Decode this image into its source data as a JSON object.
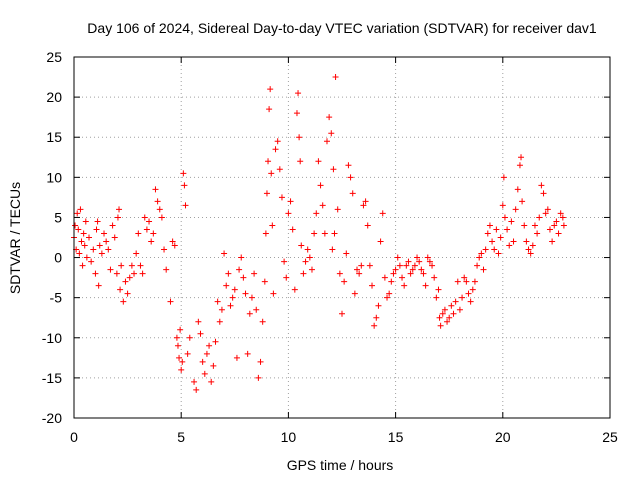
{
  "chart_data": {
    "type": "scatter",
    "title": "Day 106 of 2024, Sidereal Day-to-day VTEC variation (SDTVAR) for receiver dav1",
    "xlabel": "GPS time / hours",
    "ylabel": "SDTVAR / TECUs",
    "xlim": [
      0,
      25
    ],
    "ylim": [
      -20,
      25
    ],
    "xticks": [
      0,
      5,
      10,
      15,
      20,
      25
    ],
    "yticks": [
      -20,
      -15,
      -10,
      -5,
      0,
      5,
      10,
      15,
      20,
      25
    ],
    "xtick_labels": [
      "0",
      "5",
      "10",
      "15",
      "20",
      "25"
    ],
    "ytick_labels": [
      "-20",
      "-15",
      "-10",
      "-5",
      "0",
      "5",
      "10",
      "15",
      "20",
      "25"
    ],
    "grid": true,
    "marker": "+",
    "marker_color": "#ff0000",
    "series": [
      {
        "name": "SDTVAR",
        "points": [
          [
            0.0,
            2.5
          ],
          [
            0.05,
            4.0
          ],
          [
            0.1,
            1.0
          ],
          [
            0.15,
            5.5
          ],
          [
            0.2,
            3.5
          ],
          [
            0.25,
            0.5
          ],
          [
            0.3,
            6.0
          ],
          [
            0.35,
            2.0
          ],
          [
            0.4,
            -1.0
          ],
          [
            0.45,
            3.0
          ],
          [
            0.5,
            1.5
          ],
          [
            0.55,
            4.5
          ],
          [
            0.6,
            0.0
          ],
          [
            0.7,
            2.5
          ],
          [
            0.8,
            -0.5
          ],
          [
            0.9,
            1.0
          ],
          [
            1.0,
            -2.0
          ],
          [
            1.05,
            3.5
          ],
          [
            1.1,
            4.5
          ],
          [
            1.15,
            -3.5
          ],
          [
            1.2,
            1.5
          ],
          [
            1.3,
            0.5
          ],
          [
            1.4,
            3.0
          ],
          [
            1.5,
            2.0
          ],
          [
            1.6,
            1.0
          ],
          [
            1.7,
            -1.5
          ],
          [
            1.8,
            4.0
          ],
          [
            1.9,
            2.5
          ],
          [
            2.0,
            -2.0
          ],
          [
            2.05,
            5.0
          ],
          [
            2.1,
            6.0
          ],
          [
            2.15,
            -4.0
          ],
          [
            2.2,
            -1.0
          ],
          [
            2.3,
            -5.5
          ],
          [
            2.4,
            -3.0
          ],
          [
            2.5,
            -4.5
          ],
          [
            2.6,
            -2.5
          ],
          [
            2.7,
            -1.0
          ],
          [
            2.8,
            -2.0
          ],
          [
            2.9,
            0.5
          ],
          [
            3.0,
            3.0
          ],
          [
            3.1,
            -1.0
          ],
          [
            3.2,
            -2.0
          ],
          [
            3.3,
            5.0
          ],
          [
            3.4,
            3.5
          ],
          [
            3.5,
            4.5
          ],
          [
            3.6,
            2.0
          ],
          [
            3.7,
            3.0
          ],
          [
            3.8,
            8.5
          ],
          [
            3.9,
            7.0
          ],
          [
            4.0,
            6.0
          ],
          [
            4.1,
            5.0
          ],
          [
            4.2,
            1.0
          ],
          [
            4.3,
            -1.5
          ],
          [
            4.5,
            -5.5
          ],
          [
            4.6,
            2.0
          ],
          [
            4.7,
            1.5
          ],
          [
            4.8,
            -10.0
          ],
          [
            4.85,
            -11.0
          ],
          [
            4.9,
            -12.5
          ],
          [
            4.95,
            -9.0
          ],
          [
            5.0,
            -14.0
          ],
          [
            5.05,
            -13.0
          ],
          [
            5.1,
            10.5
          ],
          [
            5.15,
            9.0
          ],
          [
            5.2,
            6.5
          ],
          [
            5.3,
            -12.0
          ],
          [
            5.4,
            -10.0
          ],
          [
            5.6,
            -15.5
          ],
          [
            5.7,
            -16.5
          ],
          [
            5.8,
            -8.0
          ],
          [
            5.9,
            -9.5
          ],
          [
            6.0,
            -13.0
          ],
          [
            6.1,
            -14.5
          ],
          [
            6.2,
            -12.0
          ],
          [
            6.3,
            -11.0
          ],
          [
            6.4,
            -15.5
          ],
          [
            6.5,
            -13.5
          ],
          [
            6.6,
            -10.5
          ],
          [
            6.7,
            -5.5
          ],
          [
            6.8,
            -8.0
          ],
          [
            6.9,
            -6.5
          ],
          [
            7.0,
            0.5
          ],
          [
            7.1,
            -3.5
          ],
          [
            7.2,
            -2.0
          ],
          [
            7.3,
            -6.0
          ],
          [
            7.4,
            -5.0
          ],
          [
            7.5,
            -4.0
          ],
          [
            7.6,
            -12.5
          ],
          [
            7.7,
            -1.5
          ],
          [
            7.8,
            0.0
          ],
          [
            7.9,
            -2.5
          ],
          [
            8.0,
            -4.5
          ],
          [
            8.1,
            -12.0
          ],
          [
            8.2,
            -7.0
          ],
          [
            8.3,
            -5.0
          ],
          [
            8.4,
            -2.0
          ],
          [
            8.5,
            -6.5
          ],
          [
            8.6,
            -15.0
          ],
          [
            8.7,
            -13.0
          ],
          [
            8.8,
            -8.0
          ],
          [
            8.9,
            -3.0
          ],
          [
            8.95,
            3.0
          ],
          [
            9.0,
            8.0
          ],
          [
            9.05,
            12.0
          ],
          [
            9.1,
            18.5
          ],
          [
            9.15,
            21.0
          ],
          [
            9.2,
            10.5
          ],
          [
            9.25,
            4.0
          ],
          [
            9.3,
            -4.5
          ],
          [
            9.4,
            13.5
          ],
          [
            9.5,
            14.5
          ],
          [
            9.6,
            11.0
          ],
          [
            9.7,
            7.5
          ],
          [
            9.8,
            -0.5
          ],
          [
            9.9,
            -2.5
          ],
          [
            10.0,
            5.5
          ],
          [
            10.1,
            7.0
          ],
          [
            10.2,
            3.5
          ],
          [
            10.3,
            -4.0
          ],
          [
            10.4,
            18.0
          ],
          [
            10.45,
            20.5
          ],
          [
            10.5,
            15.0
          ],
          [
            10.55,
            12.0
          ],
          [
            10.6,
            1.5
          ],
          [
            10.7,
            -2.0
          ],
          [
            10.8,
            -0.5
          ],
          [
            10.9,
            1.0
          ],
          [
            11.0,
            0.0
          ],
          [
            11.1,
            -1.5
          ],
          [
            11.2,
            3.0
          ],
          [
            11.3,
            5.5
          ],
          [
            11.4,
            12.0
          ],
          [
            11.5,
            9.0
          ],
          [
            11.6,
            6.5
          ],
          [
            11.7,
            3.0
          ],
          [
            11.8,
            14.5
          ],
          [
            11.9,
            17.5
          ],
          [
            12.0,
            15.5
          ],
          [
            12.05,
            1.0
          ],
          [
            12.1,
            11.0
          ],
          [
            12.15,
            3.0
          ],
          [
            12.2,
            22.5
          ],
          [
            12.3,
            6.0
          ],
          [
            12.4,
            -2.0
          ],
          [
            12.5,
            -7.0
          ],
          [
            12.6,
            -3.0
          ],
          [
            12.7,
            0.5
          ],
          [
            12.8,
            11.5
          ],
          [
            12.9,
            10.0
          ],
          [
            13.0,
            8.0
          ],
          [
            13.1,
            -4.5
          ],
          [
            13.2,
            -1.5
          ],
          [
            13.3,
            -2.0
          ],
          [
            13.4,
            -1.0
          ],
          [
            13.5,
            6.5
          ],
          [
            13.6,
            7.0
          ],
          [
            13.7,
            4.0
          ],
          [
            13.8,
            -1.0
          ],
          [
            13.9,
            -3.5
          ],
          [
            14.0,
            -8.5
          ],
          [
            14.1,
            -7.5
          ],
          [
            14.2,
            -6.0
          ],
          [
            14.3,
            2.0
          ],
          [
            14.4,
            5.5
          ],
          [
            14.5,
            -2.5
          ],
          [
            14.6,
            -5.0
          ],
          [
            14.7,
            -4.5
          ],
          [
            14.8,
            -3.0
          ],
          [
            14.9,
            -2.0
          ],
          [
            15.0,
            -1.5
          ],
          [
            15.1,
            0.0
          ],
          [
            15.2,
            -1.0
          ],
          [
            15.3,
            -2.5
          ],
          [
            15.4,
            -3.5
          ],
          [
            15.5,
            -1.0
          ],
          [
            15.6,
            -0.5
          ],
          [
            15.7,
            -2.0
          ],
          [
            15.8,
            -1.5
          ],
          [
            15.9,
            -1.0
          ],
          [
            16.0,
            0.0
          ],
          [
            16.1,
            -0.5
          ],
          [
            16.2,
            -1.5
          ],
          [
            16.3,
            -2.0
          ],
          [
            16.4,
            -3.5
          ],
          [
            16.5,
            0.0
          ],
          [
            16.6,
            -0.5
          ],
          [
            16.7,
            -1.0
          ],
          [
            16.8,
            -2.5
          ],
          [
            16.9,
            -5.0
          ],
          [
            17.0,
            -4.0
          ],
          [
            17.05,
            -7.5
          ],
          [
            17.1,
            -8.5
          ],
          [
            17.2,
            -7.0
          ],
          [
            17.3,
            -6.5
          ],
          [
            17.4,
            -8.0
          ],
          [
            17.5,
            -7.5
          ],
          [
            17.6,
            -6.0
          ],
          [
            17.7,
            -7.0
          ],
          [
            17.8,
            -5.5
          ],
          [
            17.9,
            -3.0
          ],
          [
            18.0,
            -6.5
          ],
          [
            18.1,
            -5.0
          ],
          [
            18.2,
            -2.5
          ],
          [
            18.3,
            -3.0
          ],
          [
            18.4,
            -4.5
          ],
          [
            18.5,
            -5.5
          ],
          [
            18.6,
            -4.0
          ],
          [
            18.7,
            -3.0
          ],
          [
            18.8,
            -1.0
          ],
          [
            18.9,
            0.0
          ],
          [
            19.0,
            0.5
          ],
          [
            19.1,
            -1.5
          ],
          [
            19.2,
            1.0
          ],
          [
            19.3,
            3.0
          ],
          [
            19.4,
            4.0
          ],
          [
            19.5,
            2.0
          ],
          [
            19.6,
            1.0
          ],
          [
            19.7,
            3.5
          ],
          [
            19.8,
            0.5
          ],
          [
            19.9,
            2.5
          ],
          [
            20.0,
            6.5
          ],
          [
            20.05,
            10.0
          ],
          [
            20.1,
            5.0
          ],
          [
            20.2,
            3.5
          ],
          [
            20.3,
            1.5
          ],
          [
            20.4,
            4.5
          ],
          [
            20.5,
            2.0
          ],
          [
            20.6,
            6.0
          ],
          [
            20.7,
            8.5
          ],
          [
            20.8,
            11.5
          ],
          [
            20.85,
            12.5
          ],
          [
            20.9,
            7.0
          ],
          [
            21.0,
            4.0
          ],
          [
            21.1,
            2.0
          ],
          [
            21.2,
            1.0
          ],
          [
            21.3,
            0.5
          ],
          [
            21.4,
            1.5
          ],
          [
            21.5,
            4.0
          ],
          [
            21.6,
            3.0
          ],
          [
            21.7,
            5.0
          ],
          [
            21.8,
            9.0
          ],
          [
            21.9,
            8.0
          ],
          [
            22.0,
            5.5
          ],
          [
            22.1,
            6.0
          ],
          [
            22.2,
            3.5
          ],
          [
            22.3,
            2.0
          ],
          [
            22.4,
            4.0
          ],
          [
            22.5,
            4.5
          ],
          [
            22.6,
            3.0
          ],
          [
            22.7,
            5.5
          ],
          [
            22.8,
            5.0
          ],
          [
            22.85,
            4.0
          ]
        ]
      }
    ]
  }
}
